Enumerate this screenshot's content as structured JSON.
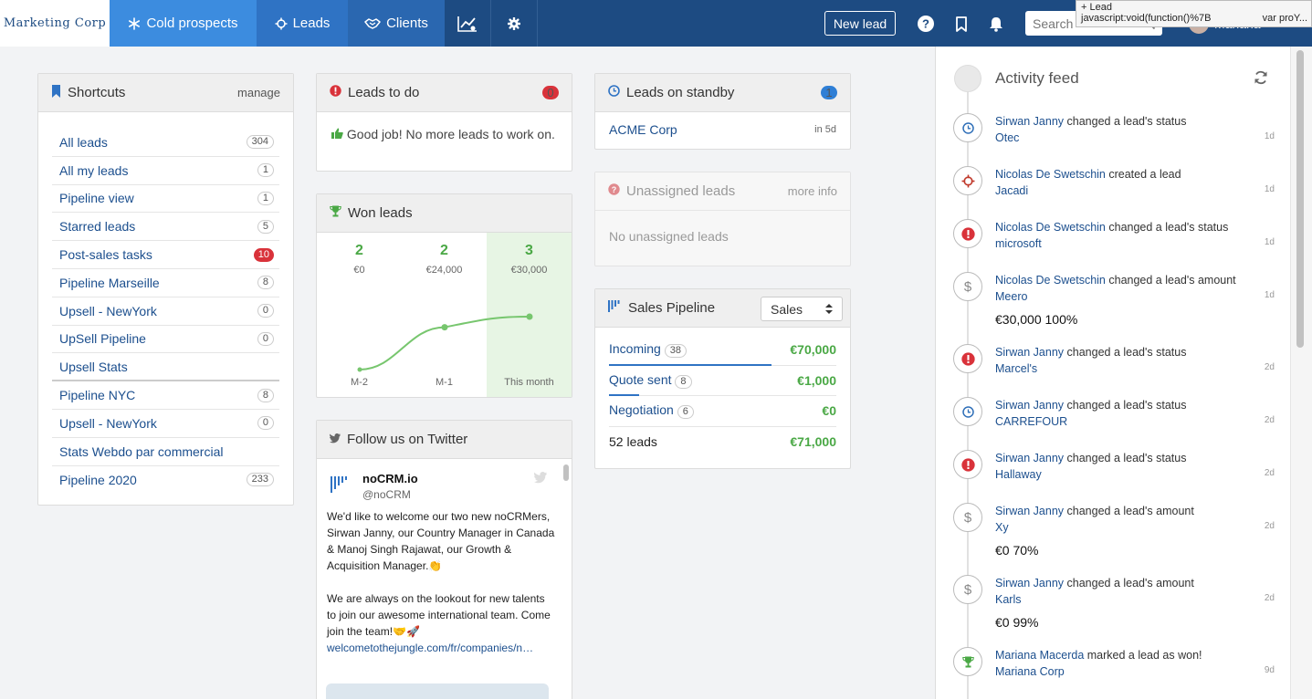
{
  "nav": {
    "logo": "Marketing Corp",
    "tabs": [
      {
        "label": "Cold prospects",
        "icon": "snowflake-icon"
      },
      {
        "label": "Leads",
        "icon": "crosshair-icon"
      },
      {
        "label": "Clients",
        "icon": "handshake-icon"
      }
    ],
    "new_lead_label": "New lead",
    "search_placeholder": "Search",
    "user_name": "Mariana",
    "tooltip_line1": "+ Lead",
    "tooltip_line2": "javascript:void(function()%7B",
    "tooltip_line3": "var proY..."
  },
  "shortcuts": {
    "title": "Shortcuts",
    "manage_label": "manage",
    "items": [
      {
        "label": "All leads",
        "count": "304"
      },
      {
        "label": "All my leads",
        "count": "1"
      },
      {
        "label": "Pipeline view",
        "count": "1"
      },
      {
        "label": "Starred leads",
        "count": "5"
      },
      {
        "label": "Post-sales tasks",
        "count": "10",
        "alert": true
      },
      {
        "label": "Pipeline Marseille",
        "count": "8"
      },
      {
        "label": "Upsell - NewYork",
        "count": "0"
      },
      {
        "label": "UpSell Pipeline",
        "count": "0"
      },
      {
        "label": "Upsell Stats",
        "count": ""
      },
      {
        "label": "Pipeline NYC",
        "count": "8"
      },
      {
        "label": "Upsell - NewYork",
        "count": "0"
      },
      {
        "label": "Stats Webdo par commercial",
        "count": ""
      },
      {
        "label": "Pipeline 2020",
        "count": "233"
      }
    ]
  },
  "todo": {
    "title": "Leads to do",
    "count": "0",
    "message": "Good job! No more leads to work on."
  },
  "won": {
    "title": "Won leads",
    "columns": [
      {
        "count": "2",
        "amount": "€0",
        "label": "M-2"
      },
      {
        "count": "2",
        "amount": "€24,000",
        "label": "M-1"
      },
      {
        "count": "3",
        "amount": "€30,000",
        "label": "This month"
      }
    ],
    "chart_values": [
      0,
      24000,
      30000
    ],
    "chart_color": "#77c66e"
  },
  "twitter": {
    "title": "Follow us on Twitter",
    "account_name": "noCRM.io",
    "handle": "@noCRM",
    "tweet_p1": "We'd like to welcome our two new noCRMers, Sirwan Janny, our Country Manager in Canada & Manoj Singh Rajawat, our Growth & Acquisition Manager.👏",
    "tweet_p2": "We are always on the lookout for new talents to join our awesome international team. Come join the team!🤝🚀",
    "tweet_link": "welcometothejungle.com/fr/companies/n…"
  },
  "standby": {
    "title": "Leads on standby",
    "count": "1",
    "lead": "ACME Corp",
    "due": "in 5d"
  },
  "unassigned": {
    "title": "Unassigned leads",
    "more_info": "more info",
    "message": "No unassigned leads"
  },
  "pipeline": {
    "title": "Sales Pipeline",
    "selected": "Sales",
    "steps": [
      {
        "label": "Incoming",
        "count": "38",
        "amount": "€70,000",
        "fill": 0.98
      },
      {
        "label": "Quote sent",
        "count": "8",
        "amount": "€1,000",
        "fill": 0.18
      },
      {
        "label": "Negotiation",
        "count": "6",
        "amount": "€0",
        "fill": 0
      }
    ],
    "total_label": "52 leads",
    "total_amount": "€71,000"
  },
  "activity": {
    "title": "Activity feed",
    "items": [
      {
        "icon": "clock-icon",
        "color": "#2f6fb8",
        "user": "Sirwan Janny",
        "action": " changed a lead's status",
        "lead": "Otec",
        "amount": "",
        "time": "1d"
      },
      {
        "icon": "crosshair-icon",
        "color": "#c0392b",
        "user": "Nicolas De Swetschin",
        "action": " created a lead",
        "lead": "Jacadi",
        "amount": "",
        "time": "1d"
      },
      {
        "icon": "alert-icon",
        "color": "#d9323a",
        "user": "Nicolas De Swetschin",
        "action": " changed a lead's status",
        "lead": "microsoft",
        "amount": "",
        "time": "1d"
      },
      {
        "icon": "dollar-icon",
        "color": "#888888",
        "user": "Nicolas De Swetschin",
        "action": " changed a lead's amount",
        "lead": "Meero",
        "amount": "€30,000 100%",
        "time": "1d"
      },
      {
        "icon": "alert-icon",
        "color": "#d9323a",
        "user": "Sirwan Janny",
        "action": " changed a lead's status",
        "lead": "Marcel's",
        "amount": "",
        "time": "2d"
      },
      {
        "icon": "clock-icon",
        "color": "#2f6fb8",
        "user": "Sirwan Janny",
        "action": " changed a lead's status",
        "lead": "CARREFOUR",
        "amount": "",
        "time": "2d"
      },
      {
        "icon": "alert-icon",
        "color": "#d9323a",
        "user": "Sirwan Janny",
        "action": " changed a lead's status",
        "lead": "Hallaway",
        "amount": "",
        "time": "2d"
      },
      {
        "icon": "dollar-icon",
        "color": "#888888",
        "user": "Sirwan Janny",
        "action": " changed a lead's amount",
        "lead": "Xy",
        "amount": "€0 70%",
        "time": "2d"
      },
      {
        "icon": "dollar-icon",
        "color": "#888888",
        "user": "Sirwan Janny",
        "action": " changed a lead's amount",
        "lead": "Karls",
        "amount": "€0 99%",
        "time": "2d"
      },
      {
        "icon": "trophy-icon",
        "color": "#4aa845",
        "user": "Mariana Macerda",
        "action": " marked a lead as won!",
        "lead": "Mariana Corp",
        "amount": "",
        "time": "9d"
      }
    ]
  },
  "colors": {
    "nav": "#1d4b82",
    "accent": "#3c8cdf",
    "success": "#4aa845",
    "danger": "#d9323a"
  }
}
